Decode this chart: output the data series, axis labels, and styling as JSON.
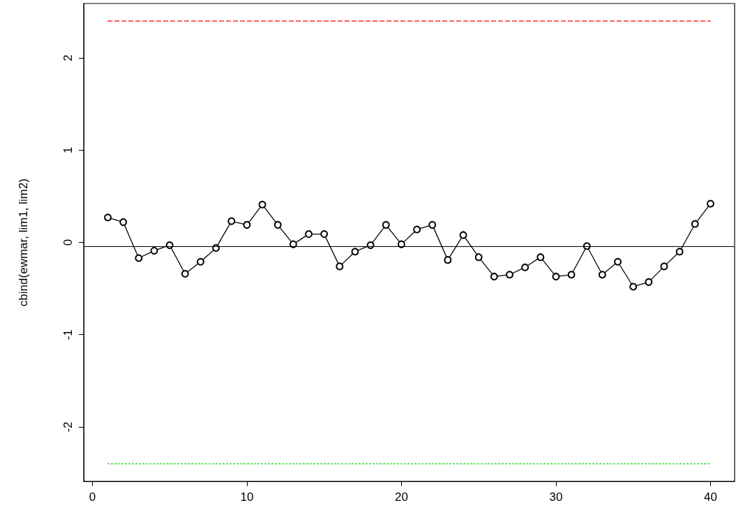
{
  "chart_data": {
    "type": "line",
    "ylabel": "cbind(ewmar, lim1, lim2)",
    "x": [
      1,
      2,
      3,
      4,
      5,
      6,
      7,
      8,
      9,
      10,
      11,
      12,
      13,
      14,
      15,
      16,
      17,
      18,
      19,
      20,
      21,
      22,
      23,
      24,
      25,
      26,
      27,
      28,
      29,
      30,
      31,
      32,
      33,
      34,
      35,
      36,
      37,
      38,
      39,
      40
    ],
    "series": [
      {
        "color": "#000000",
        "marker": "circle",
        "line_style": "solid",
        "values": [
          0.27,
          0.22,
          -0.17,
          -0.09,
          -0.03,
          -0.34,
          -0.21,
          -0.06,
          0.23,
          0.19,
          0.41,
          0.19,
          -0.02,
          0.09,
          0.09,
          -0.26,
          -0.1,
          -0.03,
          0.19,
          -0.02,
          0.14,
          0.19,
          -0.19,
          0.08,
          -0.16,
          -0.37,
          -0.35,
          -0.27,
          -0.16,
          -0.37,
          -0.35,
          -0.04,
          -0.35,
          -0.21,
          -0.48,
          -0.43,
          -0.26,
          -0.1,
          0.2,
          0.42
        ]
      },
      {
        "color": "#ff0000",
        "marker": "none",
        "line_style": "dashed",
        "values": [
          2.4,
          2.4,
          2.4,
          2.4,
          2.4,
          2.4,
          2.4,
          2.4,
          2.4,
          2.4,
          2.4,
          2.4,
          2.4,
          2.4,
          2.4,
          2.4,
          2.4,
          2.4,
          2.4,
          2.4,
          2.4,
          2.4,
          2.4,
          2.4,
          2.4,
          2.4,
          2.4,
          2.4,
          2.4,
          2.4,
          2.4,
          2.4,
          2.4,
          2.4,
          2.4,
          2.4,
          2.4,
          2.4,
          2.4,
          2.4
        ]
      },
      {
        "color": "#00cd00",
        "marker": "none",
        "line_style": "dotted",
        "values": [
          -2.4,
          -2.4,
          -2.4,
          -2.4,
          -2.4,
          -2.4,
          -2.4,
          -2.4,
          -2.4,
          -2.4,
          -2.4,
          -2.4,
          -2.4,
          -2.4,
          -2.4,
          -2.4,
          -2.4,
          -2.4,
          -2.4,
          -2.4,
          -2.4,
          -2.4,
          -2.4,
          -2.4,
          -2.4,
          -2.4,
          -2.4,
          -2.4,
          -2.4,
          -2.4,
          -2.4,
          -2.4,
          -2.4,
          -2.4,
          -2.4,
          -2.4,
          -2.4,
          -2.4,
          -2.4,
          -2.4
        ]
      }
    ],
    "ref_lines": [
      {
        "axis": "y",
        "value": -0.04,
        "color": "#000000",
        "line_style": "solid"
      }
    ],
    "xlim": [
      -0.56,
      41.56
    ],
    "xticks": [
      0,
      10,
      20,
      30,
      40
    ],
    "ylim": [
      -2.59,
      2.59
    ],
    "yticks": [
      -2,
      -1,
      0,
      1,
      2
    ],
    "grid": false
  }
}
